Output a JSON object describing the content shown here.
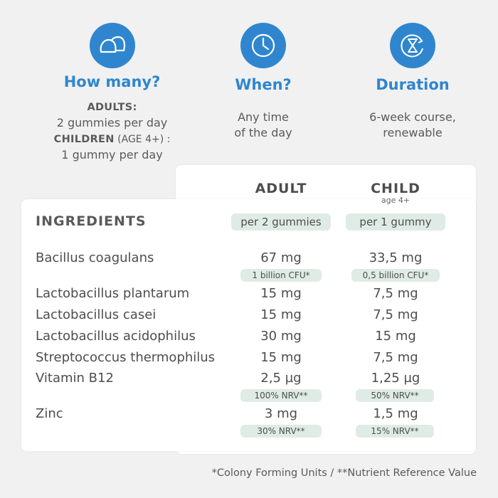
{
  "info": {
    "how_many": {
      "icon": "gummy-icon",
      "title": "How many?",
      "adults_label": "ADULTS:",
      "adults_text": "2 gummies per day",
      "children_label": "CHILDREN",
      "children_age": " (AGE 4+) :",
      "children_text": "1 gummy per day"
    },
    "when": {
      "icon": "clock-icon",
      "title": "When?",
      "line1": "Any time",
      "line2": "of the day"
    },
    "duration": {
      "icon": "hourglass-icon",
      "title": "Duration",
      "line1": "6-week course,",
      "line2": "renewable"
    }
  },
  "table": {
    "adult_header": "ADULT",
    "child_header": "CHILD",
    "child_sub": "age 4+",
    "ingredients_label": "INGREDIENTS",
    "adult_dose": "per 2 gummies",
    "child_dose": "per 1 gummy",
    "rows": [
      {
        "name": "Bacillus coagulans",
        "adult": "67 mg",
        "child": "33,5 mg",
        "adult_note": "1 billion CFU*",
        "child_note": "0,5 billion CFU*"
      },
      {
        "name": "Lactobacillus plantarum",
        "adult": "15 mg",
        "child": "7,5 mg"
      },
      {
        "name": "Lactobacillus casei",
        "adult": "15 mg",
        "child": "7,5 mg"
      },
      {
        "name": "Lactobacillus acidophilus",
        "adult": "30 mg",
        "child": "15 mg"
      },
      {
        "name": "Streptococcus thermophilus",
        "adult": "15 mg",
        "child": "7,5 mg"
      },
      {
        "name": "Vitamin B12",
        "adult": "2,5 µg",
        "child": "1,25 µg",
        "adult_note": "100% NRV**",
        "child_note": "50% NRV**"
      },
      {
        "name": "Zinc",
        "adult": "3 mg",
        "child": "1,5 mg",
        "adult_note": "30% NRV**",
        "child_note": "15% NRV**"
      }
    ]
  },
  "footer": "*Colony Forming Units / **Nutrient Reference Value",
  "colors": {
    "accent": "#2f86cf",
    "pill": "#dfece6",
    "background": "#f1f1f1"
  }
}
